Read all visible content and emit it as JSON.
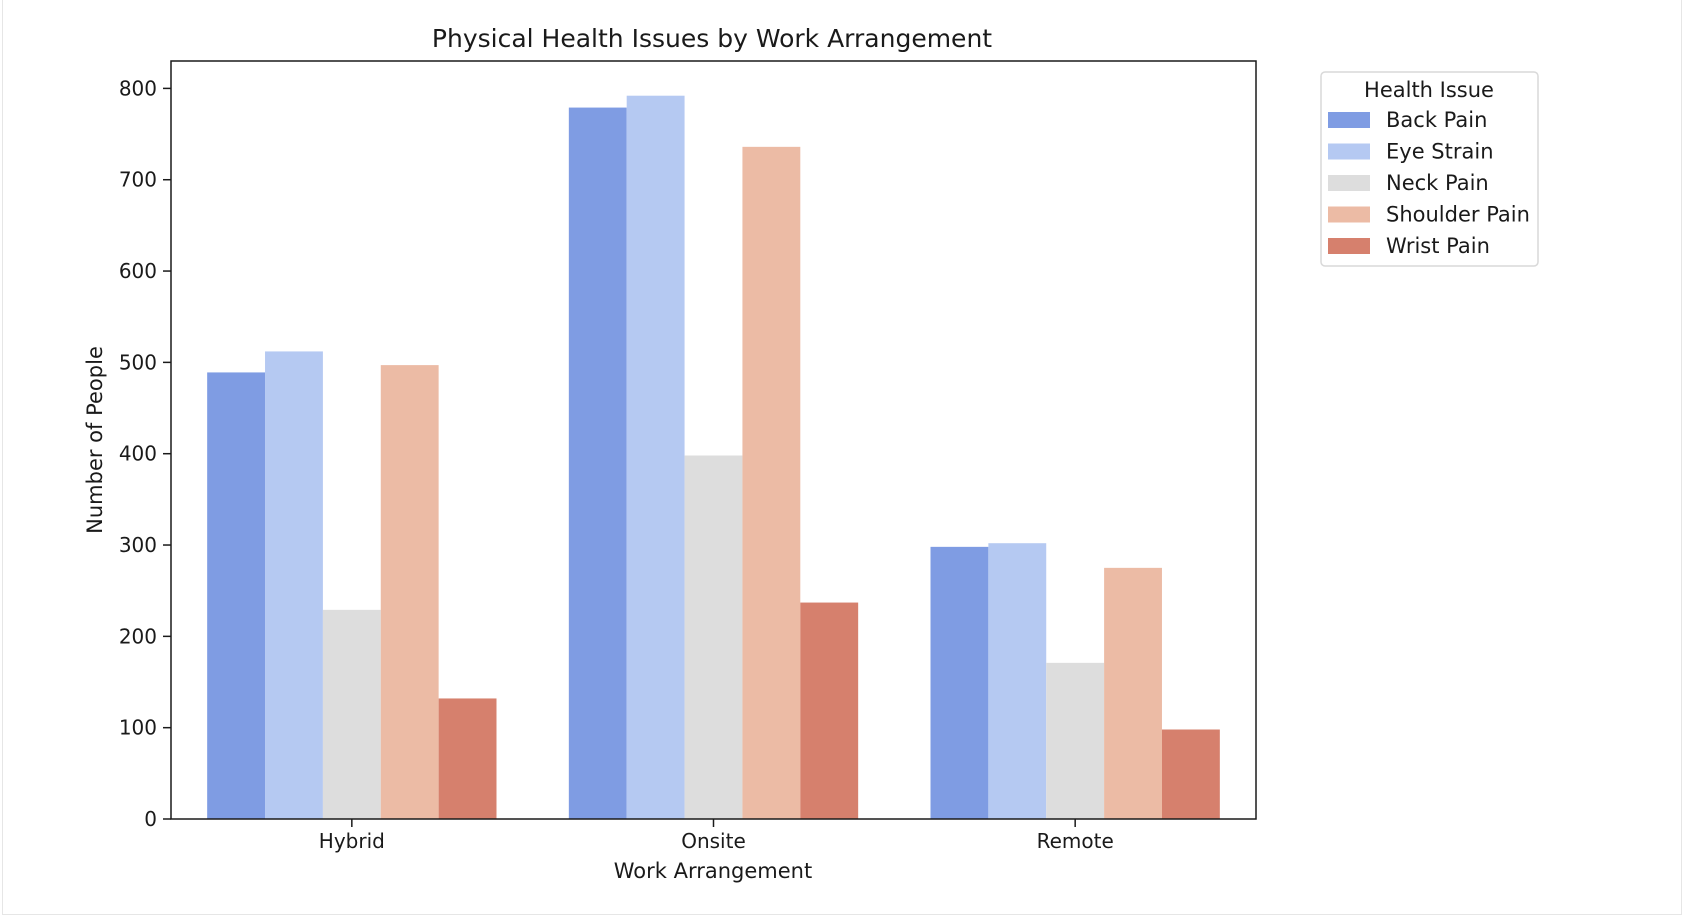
{
  "chart_data": {
    "type": "bar",
    "title": "Physical Health Issues by Work Arrangement",
    "xlabel": "Work Arrangement",
    "ylabel": "Number of People",
    "categories": [
      "Hybrid",
      "Onsite",
      "Remote"
    ],
    "ylim": [
      0,
      830
    ],
    "yticks": [
      0,
      100,
      200,
      300,
      400,
      500,
      600,
      700,
      800
    ],
    "grid": false,
    "legend": {
      "title": "Health Issue",
      "placement": "outside-top-right"
    },
    "series": [
      {
        "name": "Back Pain",
        "color": "#7f9ce3",
        "values": [
          489,
          779,
          298
        ]
      },
      {
        "name": "Eye Strain",
        "color": "#b5c9f2",
        "values": [
          512,
          792,
          302
        ]
      },
      {
        "name": "Neck Pain",
        "color": "#dddddd",
        "values": [
          229,
          398,
          171
        ]
      },
      {
        "name": "Shoulder Pain",
        "color": "#ecbba5",
        "values": [
          497,
          736,
          275
        ]
      },
      {
        "name": "Wrist Pain",
        "color": "#d6806d",
        "values": [
          132,
          237,
          98
        ]
      }
    ]
  }
}
